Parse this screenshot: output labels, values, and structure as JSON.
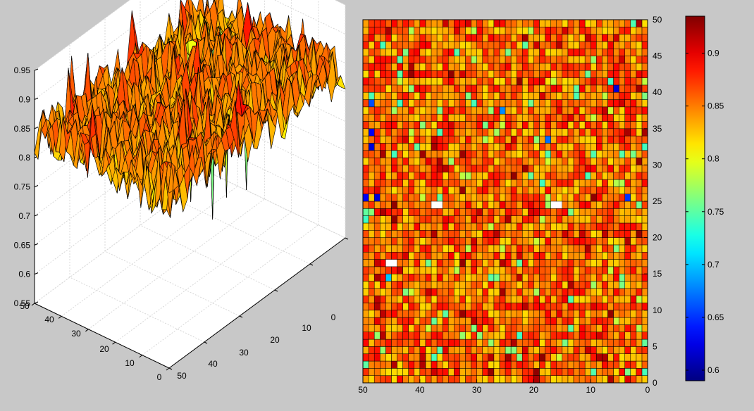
{
  "figure": {
    "background": "#c8c8c8"
  },
  "chart_data": [
    {
      "type": "surface",
      "zlim": [
        0.55,
        0.95
      ],
      "z_ticks": [
        "0.95",
        "0.9",
        "0.85",
        "0.8",
        "0.75",
        "0.7",
        "0.65",
        "0.6",
        "0.55"
      ],
      "x_ticks": [
        "0",
        "10",
        "20",
        "30",
        "40",
        "50"
      ],
      "y_ticks": [
        "0",
        "10",
        "20",
        "30",
        "40",
        "50"
      ],
      "grid": true,
      "mean_level": 0.84,
      "spikes": [
        {
          "x": 46,
          "y": 18,
          "value": 0.58
        },
        {
          "x": 44,
          "y": 15,
          "value": 0.57
        },
        {
          "x": 40,
          "y": 14,
          "value": 0.55
        },
        {
          "x": 36,
          "y": 12,
          "value": 0.62
        },
        {
          "x": 30,
          "y": 18,
          "value": 0.63
        }
      ]
    },
    {
      "type": "heatmap",
      "xlim": [
        0,
        50
      ],
      "ylim": [
        0,
        50
      ],
      "x_ticks": [
        "50",
        "40",
        "30",
        "20",
        "10",
        "0"
      ],
      "y_ticks": [
        "50",
        "45",
        "40",
        "35",
        "30",
        "25",
        "20",
        "15",
        "10",
        "5",
        "0"
      ],
      "x_direction": "reversed",
      "grid": true,
      "mean_value": 0.85,
      "nan_cells": [
        [
          36,
          24
        ],
        [
          37,
          24
        ],
        [
          15,
          24
        ],
        [
          16,
          24
        ],
        [
          44,
          16
        ],
        [
          45,
          16
        ]
      ],
      "low_values": [
        {
          "x": 49,
          "y": 25,
          "value": 0.63
        },
        {
          "x": 47,
          "y": 25,
          "value": 0.62
        },
        {
          "x": 48,
          "y": 34,
          "value": 0.63
        },
        {
          "x": 48,
          "y": 32,
          "value": 0.62
        },
        {
          "x": 48,
          "y": 38,
          "value": 0.66
        },
        {
          "x": 5,
          "y": 40,
          "value": 0.62
        },
        {
          "x": 3,
          "y": 25,
          "value": 0.65
        },
        {
          "x": 25,
          "y": 37,
          "value": 0.68
        },
        {
          "x": 17,
          "y": 33,
          "value": 0.67
        },
        {
          "x": 45,
          "y": 14,
          "value": 0.7
        }
      ]
    },
    {
      "type": "colorbar",
      "range": [
        0.59,
        0.935
      ],
      "ticks": [
        "0.9",
        "0.85",
        "0.8",
        "0.75",
        "0.7",
        "0.65",
        "0.6"
      ],
      "colormap": "jet"
    }
  ]
}
